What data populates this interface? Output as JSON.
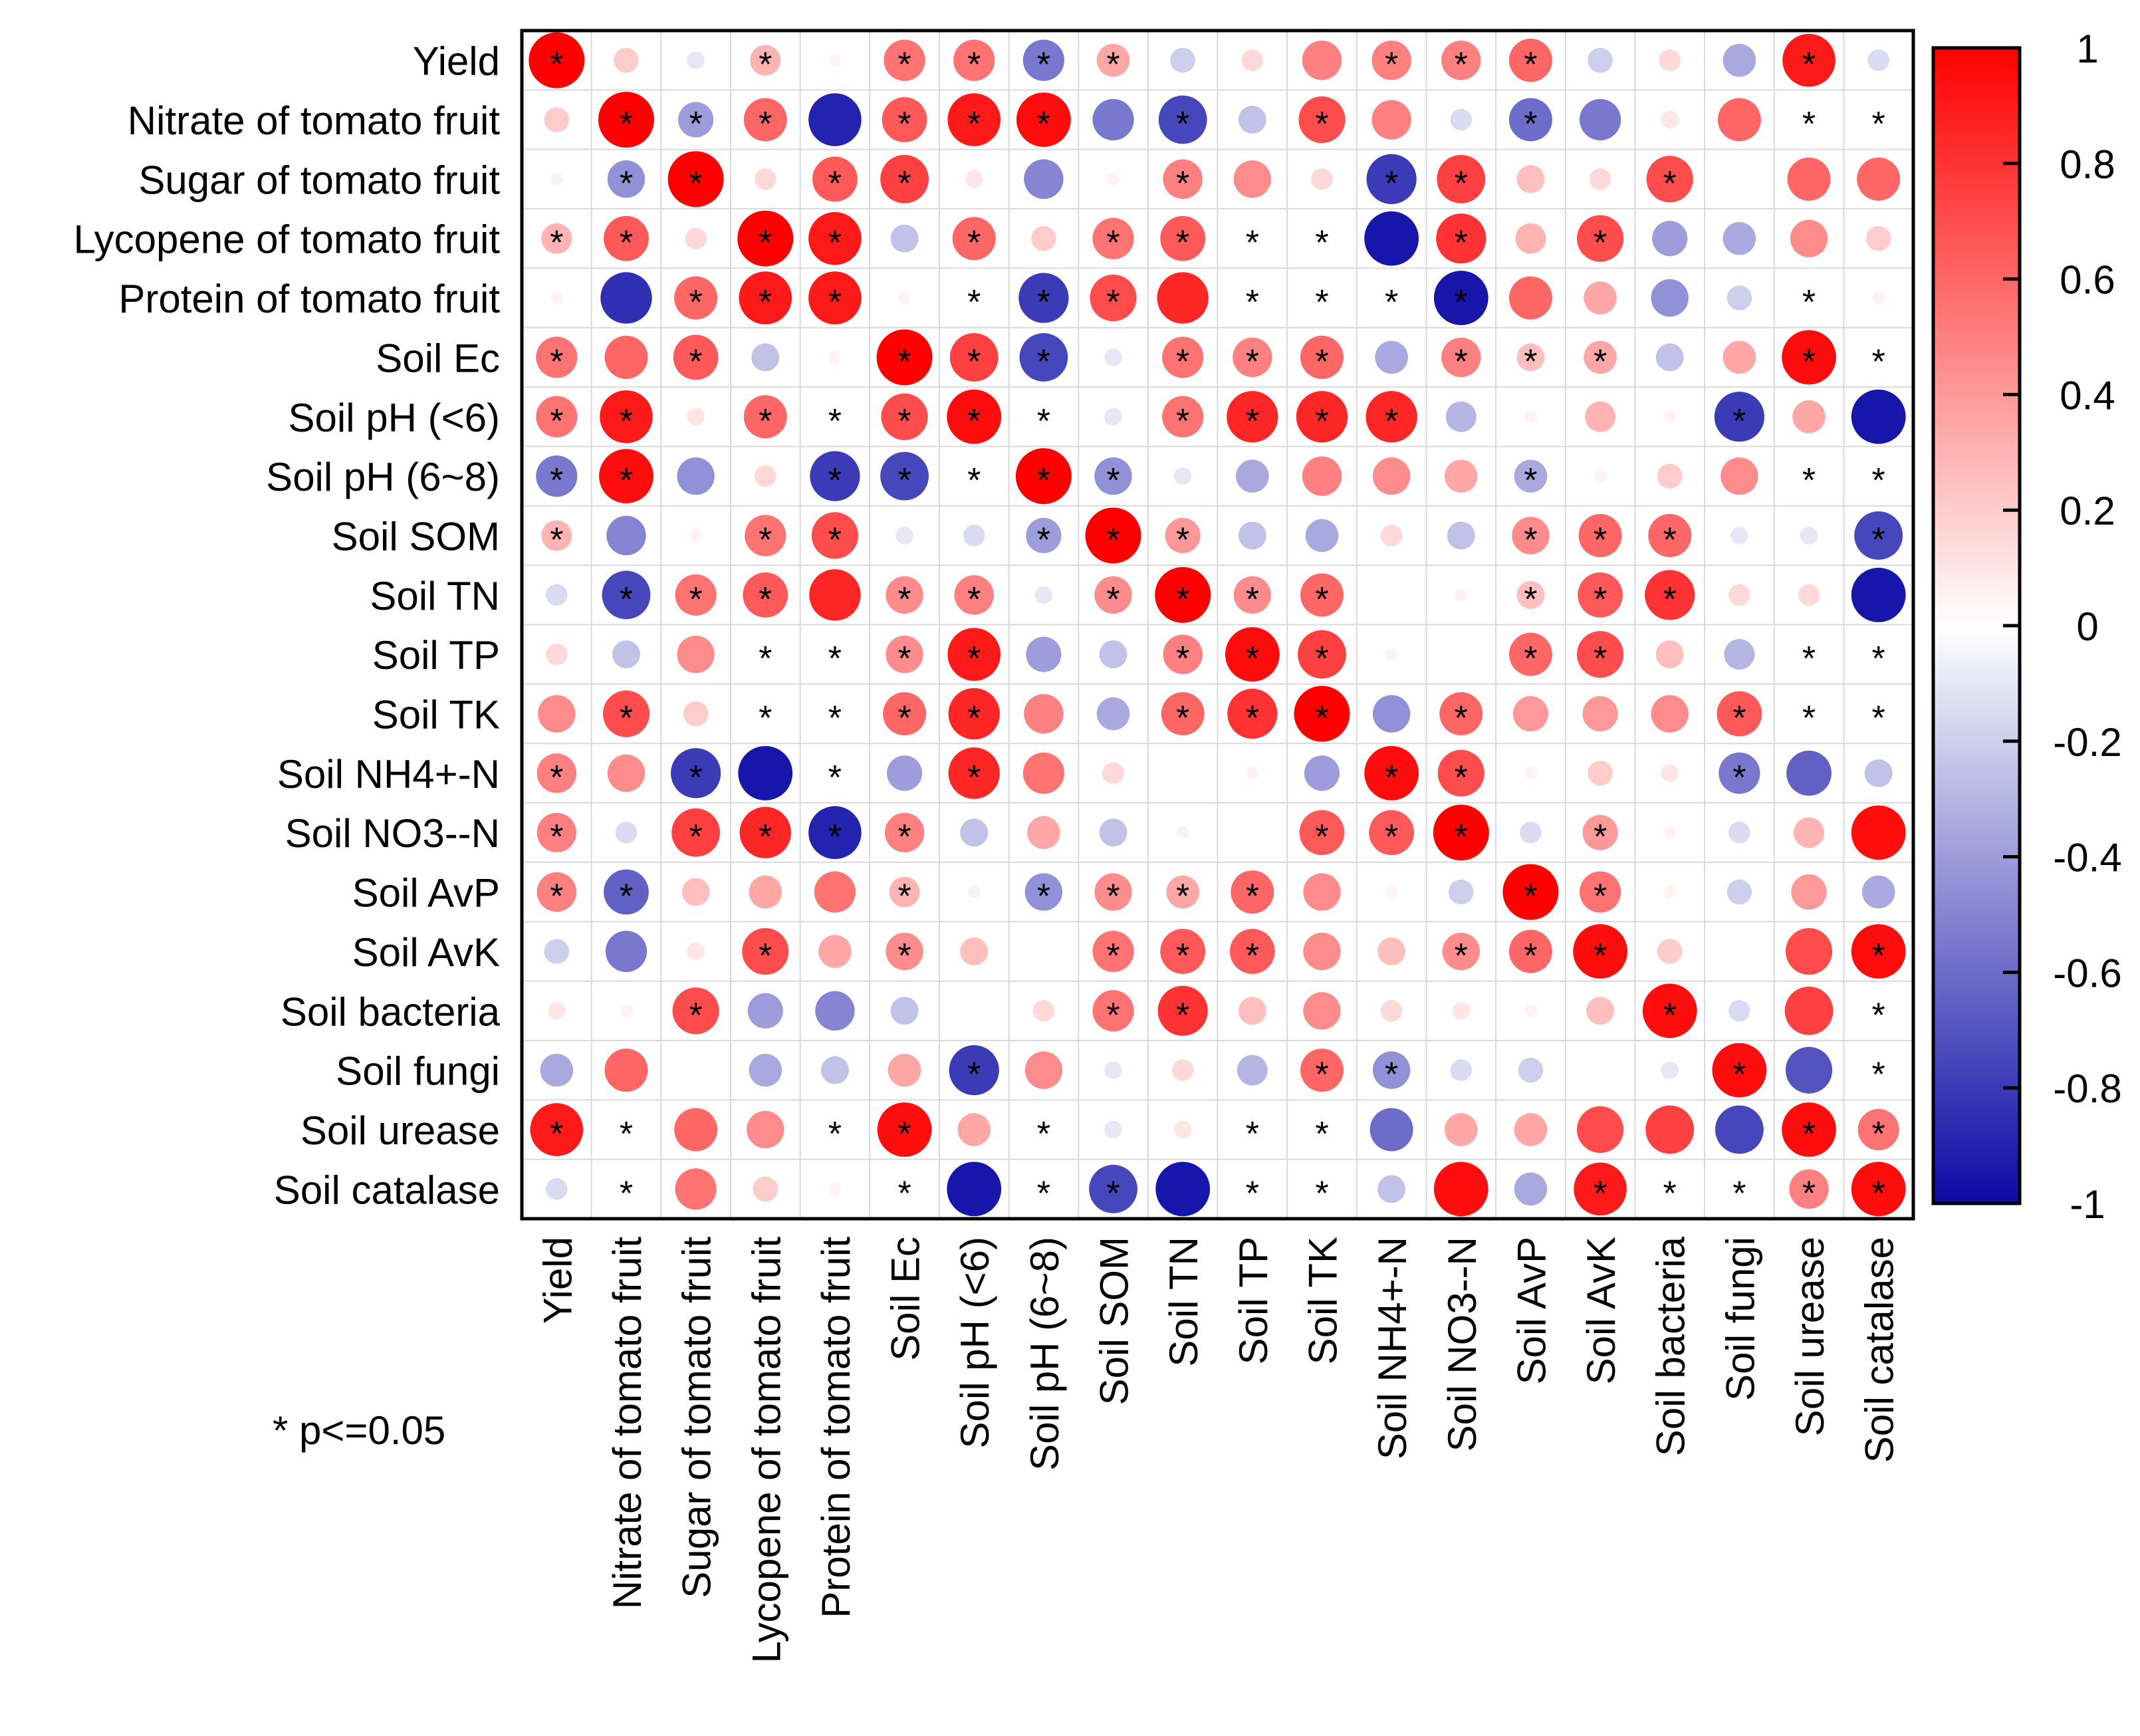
{
  "chart_data": {
    "type": "heatmap",
    "style": "correlation-circles",
    "title": "",
    "labels": [
      "Yield",
      "Nitrate of tomato fruit",
      "Sugar of tomato fruit",
      "Lycopene of tomato fruit",
      "Protein of tomato fruit",
      "Soil Ec",
      "Soil pH (<6)",
      "Soil pH (6~8)",
      "Soil SOM",
      "Soil TN",
      "Soil TP",
      "Soil TK",
      "Soil NH4+-N",
      "Soil NO3--N",
      "Soil AvP",
      "Soil AvK",
      "Soil bacteria",
      "Soil fungi",
      "Soil urease",
      "Soil catalase"
    ],
    "values": [
      [
        1,
        0.2,
        -0.1,
        0.3,
        0.05,
        0.55,
        0.55,
        -0.55,
        0.35,
        -0.2,
        0.15,
        0.5,
        0.5,
        0.5,
        0.6,
        -0.2,
        0.15,
        -0.35,
        0.9,
        -0.15
      ],
      [
        0.2,
        1,
        -0.4,
        0.6,
        -0.9,
        0.65,
        0.9,
        0.95,
        -0.55,
        -0.75,
        -0.25,
        0.7,
        0.5,
        -0.15,
        -0.6,
        -0.55,
        0.1,
        0.6,
        0,
        0
      ],
      [
        -0.05,
        -0.45,
        1,
        0.15,
        0.65,
        0.75,
        0.1,
        -0.5,
        0.05,
        0.5,
        0.45,
        0.15,
        -0.8,
        0.75,
        0.25,
        0.15,
        0.7,
        0,
        0.6,
        0.6
      ],
      [
        0.3,
        0.65,
        0.15,
        1,
        0.9,
        -0.25,
        0.6,
        0.2,
        0.55,
        0.65,
        0,
        0,
        -0.95,
        0.8,
        0.3,
        0.7,
        -0.4,
        -0.35,
        0.45,
        0.2
      ],
      [
        0.05,
        -0.85,
        0.6,
        0.9,
        0.9,
        0.05,
        0,
        -0.8,
        0.7,
        0.85,
        0,
        0,
        0,
        -0.95,
        0.6,
        0.35,
        -0.45,
        -0.2,
        0,
        0.05
      ],
      [
        0.55,
        0.6,
        0.65,
        -0.25,
        0.05,
        1,
        0.75,
        -0.75,
        -0.1,
        0.55,
        0.5,
        0.6,
        -0.35,
        0.5,
        0.25,
        0.35,
        -0.25,
        0.35,
        0.95,
        0
      ],
      [
        0.55,
        0.9,
        0.1,
        0.6,
        0,
        0.7,
        0.95,
        0,
        -0.1,
        0.55,
        0.85,
        0.85,
        0.85,
        -0.3,
        0.05,
        0.3,
        0.05,
        -0.8,
        0.35,
        -0.95
      ],
      [
        -0.55,
        0.95,
        -0.45,
        0.15,
        -0.8,
        -0.75,
        0,
        1,
        -0.45,
        -0.1,
        -0.35,
        0.5,
        0.45,
        0.35,
        -0.35,
        0.05,
        0.2,
        0.45,
        0,
        0
      ],
      [
        0.3,
        -0.5,
        0.05,
        0.55,
        0.7,
        -0.1,
        -0.15,
        -0.4,
        1,
        0.4,
        -0.25,
        -0.35,
        0.15,
        -0.25,
        0.45,
        0.6,
        0.6,
        -0.1,
        -0.1,
        -0.75
      ],
      [
        -0.15,
        -0.75,
        0.55,
        0.65,
        0.85,
        0.45,
        0.5,
        -0.1,
        0.45,
        1,
        0.45,
        0.6,
        0,
        0.05,
        0.25,
        0.65,
        0.8,
        0.15,
        0.15,
        -0.95
      ],
      [
        0.15,
        -0.25,
        0.45,
        0,
        0,
        0.45,
        0.9,
        -0.4,
        -0.25,
        0.5,
        0.95,
        0.75,
        0.05,
        0,
        0.6,
        0.7,
        0.25,
        -0.3,
        0,
        0
      ],
      [
        0.45,
        0.7,
        0.2,
        0,
        0,
        0.6,
        0.85,
        0.5,
        -0.35,
        0.6,
        0.8,
        1,
        -0.45,
        0.6,
        0.4,
        0.4,
        0.45,
        0.65,
        0,
        0
      ],
      [
        0.5,
        0.45,
        -0.8,
        -0.95,
        0,
        -0.4,
        0.85,
        0.55,
        0.15,
        0,
        0.05,
        -0.4,
        0.95,
        0.7,
        0.05,
        0.2,
        0.1,
        -0.55,
        -0.65,
        -0.25
      ],
      [
        0.5,
        -0.15,
        0.75,
        0.85,
        -0.9,
        0.5,
        -0.25,
        0.35,
        -0.25,
        -0.05,
        0,
        0.65,
        0.65,
        1,
        -0.15,
        0.4,
        0.05,
        -0.15,
        0.3,
        0.95
      ],
      [
        0.5,
        -0.65,
        0.25,
        0.35,
        0.55,
        0.3,
        -0.05,
        -0.45,
        0.45,
        0.35,
        0.6,
        0.45,
        0.05,
        -0.2,
        1,
        0.55,
        0.05,
        -0.2,
        0.4,
        -0.35
      ],
      [
        -0.2,
        -0.55,
        0.1,
        0.7,
        0.35,
        0.45,
        0.25,
        0,
        0.55,
        0.65,
        0.65,
        0.45,
        0.25,
        0.45,
        0.6,
        0.95,
        0.2,
        0,
        0.7,
        0.95
      ],
      [
        0.1,
        0.05,
        0.7,
        -0.4,
        -0.5,
        -0.25,
        0,
        0.15,
        0.55,
        0.8,
        0.25,
        0.45,
        0.15,
        0.1,
        0.05,
        0.25,
        0.95,
        -0.15,
        0.75,
        0
      ],
      [
        -0.35,
        0.6,
        0,
        -0.35,
        -0.25,
        0.35,
        -0.8,
        0.45,
        -0.1,
        0.15,
        -0.3,
        0.6,
        -0.45,
        -0.15,
        -0.2,
        0,
        -0.1,
        0.95,
        -0.7,
        0
      ],
      [
        0.9,
        0,
        0.6,
        0.45,
        0,
        0.95,
        0.35,
        0,
        -0.1,
        0.1,
        0,
        0,
        -0.6,
        0.35,
        0.35,
        0.7,
        0.75,
        -0.75,
        0.95,
        0.55
      ],
      [
        -0.15,
        0,
        0.55,
        0.2,
        0.05,
        0,
        -0.95,
        0,
        -0.75,
        -0.95,
        0,
        0,
        -0.25,
        0.95,
        -0.35,
        0.9,
        0,
        0,
        0.5,
        0.95
      ]
    ],
    "significant": [
      [
        1,
        0,
        0,
        1,
        0,
        1,
        1,
        1,
        1,
        0,
        0,
        0,
        1,
        1,
        1,
        0,
        0,
        0,
        1,
        0
      ],
      [
        0,
        1,
        1,
        1,
        0,
        1,
        1,
        1,
        0,
        1,
        0,
        1,
        0,
        0,
        1,
        0,
        0,
        0,
        1,
        1
      ],
      [
        0,
        1,
        1,
        0,
        1,
        1,
        0,
        0,
        0,
        1,
        0,
        0,
        1,
        1,
        0,
        0,
        1,
        0,
        0,
        0
      ],
      [
        1,
        1,
        0,
        1,
        1,
        0,
        1,
        0,
        1,
        1,
        1,
        1,
        0,
        1,
        0,
        1,
        0,
        0,
        0,
        0
      ],
      [
        0,
        0,
        1,
        1,
        1,
        0,
        1,
        1,
        1,
        0,
        1,
        1,
        1,
        1,
        0,
        0,
        0,
        0,
        1,
        0
      ],
      [
        1,
        0,
        1,
        0,
        0,
        1,
        1,
        1,
        0,
        1,
        1,
        1,
        0,
        1,
        1,
        1,
        0,
        0,
        1,
        1
      ],
      [
        1,
        1,
        0,
        1,
        1,
        1,
        1,
        1,
        0,
        1,
        1,
        1,
        1,
        0,
        0,
        0,
        0,
        1,
        0,
        0
      ],
      [
        1,
        1,
        0,
        0,
        1,
        1,
        1,
        1,
        1,
        0,
        0,
        0,
        0,
        0,
        1,
        0,
        0,
        0,
        1,
        1
      ],
      [
        1,
        0,
        0,
        1,
        1,
        0,
        0,
        1,
        1,
        1,
        0,
        0,
        0,
        0,
        1,
        1,
        1,
        0,
        0,
        1
      ],
      [
        0,
        1,
        1,
        1,
        0,
        1,
        1,
        0,
        1,
        1,
        1,
        1,
        0,
        0,
        1,
        1,
        1,
        0,
        0,
        0
      ],
      [
        0,
        0,
        0,
        1,
        1,
        1,
        1,
        0,
        0,
        1,
        1,
        1,
        0,
        0,
        1,
        1,
        0,
        0,
        1,
        1
      ],
      [
        0,
        1,
        0,
        1,
        1,
        1,
        1,
        0,
        0,
        1,
        1,
        1,
        0,
        1,
        0,
        0,
        0,
        1,
        1,
        1
      ],
      [
        1,
        0,
        1,
        0,
        1,
        0,
        1,
        0,
        0,
        0,
        0,
        0,
        1,
        1,
        0,
        0,
        0,
        1,
        0,
        0
      ],
      [
        1,
        0,
        1,
        1,
        1,
        1,
        0,
        0,
        0,
        0,
        0,
        1,
        1,
        1,
        0,
        1,
        0,
        0,
        0,
        0
      ],
      [
        1,
        1,
        0,
        0,
        0,
        1,
        0,
        1,
        1,
        1,
        1,
        0,
        0,
        0,
        1,
        1,
        0,
        0,
        0,
        0
      ],
      [
        0,
        0,
        0,
        1,
        0,
        1,
        0,
        0,
        1,
        1,
        1,
        0,
        0,
        1,
        1,
        1,
        0,
        0,
        0,
        1
      ],
      [
        0,
        0,
        1,
        0,
        0,
        0,
        0,
        0,
        1,
        1,
        0,
        0,
        0,
        0,
        0,
        0,
        1,
        0,
        0,
        1
      ],
      [
        0,
        0,
        0,
        0,
        0,
        0,
        1,
        0,
        0,
        0,
        0,
        1,
        1,
        0,
        0,
        0,
        0,
        1,
        0,
        1
      ],
      [
        1,
        1,
        0,
        0,
        1,
        1,
        0,
        1,
        0,
        0,
        1,
        1,
        0,
        0,
        0,
        0,
        0,
        0,
        1,
        1
      ],
      [
        0,
        1,
        0,
        0,
        0,
        1,
        0,
        1,
        1,
        0,
        1,
        1,
        0,
        0,
        0,
        1,
        1,
        1,
        1,
        1
      ]
    ],
    "colorbar": {
      "range": [
        -1,
        1
      ],
      "ticks": [
        "1",
        "0.8",
        "0.6",
        "0.4",
        "0.2",
        "0",
        "-0.2",
        "-0.4",
        "-0.6",
        "-0.8",
        "-1"
      ],
      "colors": {
        "negative": "#0a0aa6",
        "zero": "#ffffff",
        "positive": "#ff0000"
      }
    },
    "legend_note": "* p<=0.05",
    "significance_marker": "*"
  }
}
